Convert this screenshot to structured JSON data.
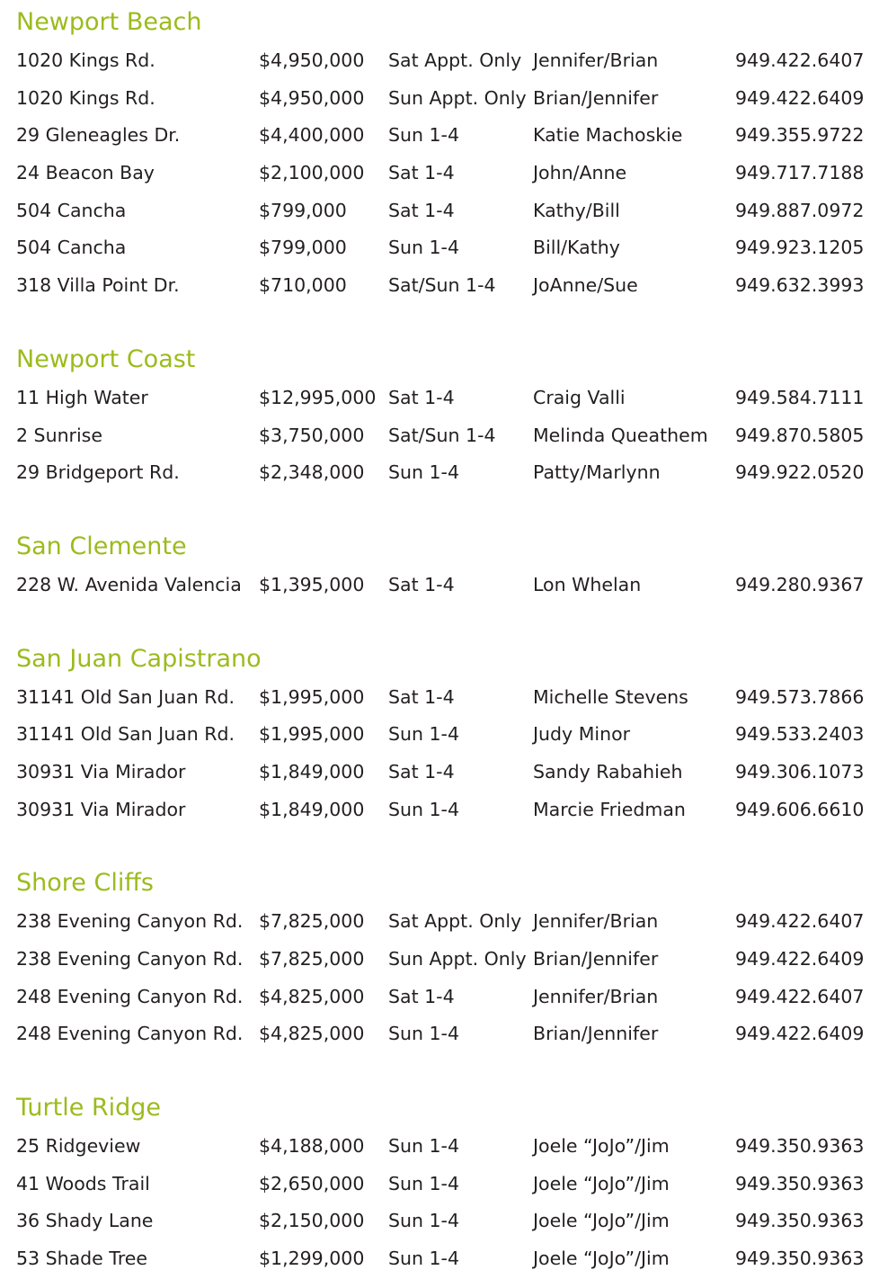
{
  "heading_color": "#9bbb1c",
  "sections": [
    {
      "title": "Newport Beach",
      "rows": [
        [
          "1020 Kings Rd.",
          "$4,950,000",
          "Sat Appt. Only",
          "Jennifer/Brian",
          "949.422.6407"
        ],
        [
          "1020 Kings Rd.",
          "$4,950,000",
          "Sun Appt. Only",
          "Brian/Jennifer",
          "949.422.6409"
        ],
        [
          "29 Gleneagles Dr.",
          "$4,400,000",
          "Sun 1-4",
          "Katie Machoskie",
          "949.355.9722"
        ],
        [
          "24 Beacon Bay",
          "$2,100,000",
          "Sat 1-4",
          "John/Anne",
          "949.717.7188"
        ],
        [
          "504 Cancha",
          "$799,000",
          "Sat 1-4",
          "Kathy/Bill",
          "949.887.0972"
        ],
        [
          "504 Cancha",
          "$799,000",
          "Sun 1-4",
          "Bill/Kathy",
          "949.923.1205"
        ],
        [
          "318 Villa Point Dr.",
          "$710,000",
          "Sat/Sun 1-4",
          "JoAnne/Sue",
          "949.632.3993"
        ]
      ]
    },
    {
      "title": "Newport Coast",
      "rows": [
        [
          "11 High Water",
          "$12,995,000",
          "Sat 1-4",
          "Craig Valli",
          "949.584.7111"
        ],
        [
          "2 Sunrise",
          "$3,750,000",
          "Sat/Sun 1-4",
          "Melinda Queathem",
          "949.870.5805"
        ],
        [
          "29 Bridgeport Rd.",
          "$2,348,000",
          "Sun 1-4",
          "Patty/Marlynn",
          "949.922.0520"
        ]
      ]
    },
    {
      "title": "San Clemente",
      "rows": [
        [
          "228 W. Avenida Valencia",
          "$1,395,000",
          "Sat 1-4",
          "Lon Whelan",
          "949.280.9367"
        ]
      ]
    },
    {
      "title": "San Juan Capistrano",
      "rows": [
        [
          "31141 Old San Juan Rd.",
          "$1,995,000",
          "Sat 1-4",
          "Michelle Stevens",
          "949.573.7866"
        ],
        [
          "31141 Old San Juan Rd.",
          "$1,995,000",
          "Sun 1-4",
          "Judy Minor",
          "949.533.2403"
        ],
        [
          "30931 Via Mirador",
          "$1,849,000",
          "Sat 1-4",
          "Sandy Rabahieh",
          "949.306.1073"
        ],
        [
          "30931 Via Mirador",
          "$1,849,000",
          "Sun 1-4",
          "Marcie Friedman",
          "949.606.6610"
        ]
      ]
    },
    {
      "title": "Shore Cliffs",
      "rows": [
        [
          "238 Evening Canyon Rd.",
          "$7,825,000",
          "Sat Appt. Only",
          "Jennifer/Brian",
          "949.422.6407"
        ],
        [
          "238 Evening Canyon Rd.",
          "$7,825,000",
          "Sun Appt. Only",
          "Brian/Jennifer",
          "949.422.6409"
        ],
        [
          "248 Evening Canyon Rd.",
          "$4,825,000",
          "Sat 1-4",
          "Jennifer/Brian",
          "949.422.6407"
        ],
        [
          "248 Evening Canyon Rd.",
          "$4,825,000",
          "Sun 1-4",
          "Brian/Jennifer",
          "949.422.6409"
        ]
      ]
    },
    {
      "title": "Turtle Ridge",
      "rows": [
        [
          "25 Ridgeview",
          "$4,188,000",
          "Sun 1-4",
          "Joele “JoJo”/Jim",
          "949.350.9363"
        ],
        [
          "41 Woods Trail",
          "$2,650,000",
          "Sun 1-4",
          "Joele “JoJo”/Jim",
          "949.350.9363"
        ],
        [
          "36 Shady Lane",
          "$2,150,000",
          "Sun 1-4",
          "Joele “JoJo”/Jim",
          "949.350.9363"
        ],
        [
          "53 Shade Tree",
          "$1,299,000",
          "Sun 1-4",
          "Joele “JoJo”/Jim",
          "949.350.9363"
        ]
      ]
    }
  ]
}
